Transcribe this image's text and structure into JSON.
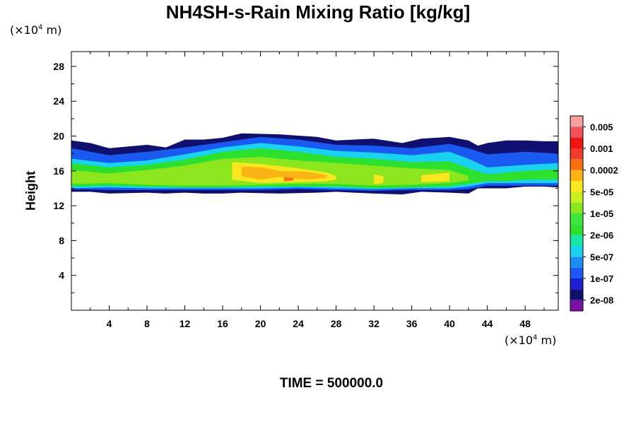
{
  "chart_data": {
    "type": "heatmap",
    "title": "NH4SH-s-Rain Mixing Ratio [kg/kg]",
    "ylabel": "Height",
    "xlabel": "",
    "x_unit": {
      "prefix": "(×10",
      "exp": "4",
      "suffix": " m)"
    },
    "y_unit": {
      "prefix": "(×10",
      "exp": "4",
      "suffix": " m)"
    },
    "xlim": [
      0,
      51.5
    ],
    "ylim": [
      0,
      29.7
    ],
    "x_ticks": [
      4,
      8,
      12,
      16,
      20,
      24,
      28,
      32,
      36,
      40,
      44,
      48
    ],
    "y_ticks": [
      4,
      8,
      12,
      16,
      20,
      24,
      28
    ],
    "time_label": "TIME = 500000.0",
    "colorbar": {
      "colors": [
        "#7b0fa8",
        "#101070",
        "#1e1ed2",
        "#1a5af0",
        "#1c8cf5",
        "#18d2f0",
        "#18e6a6",
        "#2ee02e",
        "#3ce63c",
        "#8ce61e",
        "#c8f01e",
        "#fae61e",
        "#fab414",
        "#fa6e14",
        "#f03c28",
        "#f01414",
        "#f0505a",
        "#f8a0a0"
      ],
      "labels": [
        "2e-08",
        "1e-07",
        "5e-07",
        "2e-06",
        "1e-05",
        "5e-05",
        "0.0002",
        "0.001",
        "0.005"
      ]
    },
    "field_regions": [
      {
        "level": 1,
        "profile": [
          [
            0,
            13.6,
            19.5
          ],
          [
            2,
            13.6,
            19.2
          ],
          [
            4,
            13.4,
            18.6
          ],
          [
            8,
            13.5,
            19.0
          ],
          [
            10,
            13.4,
            18.7
          ],
          [
            12,
            13.5,
            19.6
          ],
          [
            14,
            13.4,
            19.6
          ],
          [
            16,
            13.4,
            19.8
          ],
          [
            18,
            13.5,
            20.3
          ],
          [
            22,
            13.4,
            20.2
          ],
          [
            26,
            13.5,
            19.9
          ],
          [
            28,
            13.6,
            19.5
          ],
          [
            32,
            13.4,
            19.7
          ],
          [
            35,
            13.3,
            19.2
          ],
          [
            37,
            13.6,
            19.7
          ],
          [
            40,
            13.5,
            19.9
          ],
          [
            42,
            13.4,
            19.5
          ],
          [
            43,
            14.0,
            18.9
          ],
          [
            44,
            14.0,
            19.2
          ],
          [
            46,
            14.0,
            19.5
          ],
          [
            48,
            14.2,
            19.5
          ],
          [
            50,
            14.2,
            19.4
          ],
          [
            51.5,
            14.1,
            19.4
          ]
        ]
      },
      {
        "level": 3,
        "profile": [
          [
            0,
            13.9,
            18.6
          ],
          [
            4,
            13.8,
            17.8
          ],
          [
            8,
            13.8,
            18.2
          ],
          [
            12,
            13.8,
            18.7
          ],
          [
            16,
            13.8,
            19.3
          ],
          [
            20,
            13.8,
            19.9
          ],
          [
            24,
            13.9,
            19.6
          ],
          [
            28,
            13.8,
            19.0
          ],
          [
            32,
            13.7,
            18.9
          ],
          [
            36,
            13.8,
            18.6
          ],
          [
            40,
            13.8,
            19.1
          ],
          [
            42,
            13.9,
            18.6
          ],
          [
            44,
            14.3,
            17.9
          ],
          [
            48,
            14.3,
            18.2
          ],
          [
            51.5,
            14.3,
            18.0
          ]
        ]
      },
      {
        "level": 5,
        "profile": [
          [
            0,
            14.0,
            17.4
          ],
          [
            4,
            14.1,
            16.9
          ],
          [
            8,
            14.0,
            17.2
          ],
          [
            12,
            14.0,
            17.9
          ],
          [
            16,
            14.0,
            18.7
          ],
          [
            20,
            14.0,
            19.2
          ],
          [
            24,
            14.1,
            18.8
          ],
          [
            28,
            14.0,
            18.3
          ],
          [
            32,
            13.9,
            18.1
          ],
          [
            36,
            14.0,
            17.8
          ],
          [
            40,
            14.0,
            18.2
          ],
          [
            42,
            14.2,
            17.4
          ],
          [
            44,
            14.6,
            16.4
          ],
          [
            48,
            14.6,
            16.7
          ],
          [
            51.5,
            14.6,
            16.9
          ]
        ]
      },
      {
        "level": 7,
        "profile": [
          [
            0,
            14.2,
            16.9
          ],
          [
            4,
            14.3,
            16.4
          ],
          [
            8,
            14.2,
            16.7
          ],
          [
            12,
            14.1,
            17.3
          ],
          [
            16,
            14.1,
            18.2
          ],
          [
            20,
            14.2,
            18.6
          ],
          [
            24,
            14.2,
            18.2
          ],
          [
            28,
            14.2,
            17.6
          ],
          [
            32,
            14.0,
            17.4
          ],
          [
            36,
            14.1,
            17.0
          ],
          [
            40,
            14.2,
            17.1
          ],
          [
            42,
            14.5,
            16.3
          ],
          [
            44,
            14.8,
            15.6
          ],
          [
            46,
            14.8,
            15.8
          ],
          [
            48,
            15.0,
            16.0
          ],
          [
            51.5,
            15.0,
            16.2
          ]
        ]
      },
      {
        "level": 9,
        "profile": [
          [
            0,
            14.5,
            16.1
          ],
          [
            4,
            14.6,
            15.7
          ],
          [
            8,
            14.4,
            16.1
          ],
          [
            12,
            14.3,
            16.6
          ],
          [
            16,
            14.3,
            17.4
          ],
          [
            20,
            14.4,
            17.6
          ],
          [
            24,
            14.5,
            17.2
          ],
          [
            28,
            14.5,
            16.9
          ],
          [
            32,
            14.3,
            16.6
          ],
          [
            36,
            14.4,
            16.3
          ],
          [
            40,
            14.6,
            16.1
          ],
          [
            42,
            14.9,
            15.4
          ]
        ]
      },
      {
        "level": 11,
        "profile": [
          [
            17,
            15.0,
            17.0
          ],
          [
            20,
            14.6,
            16.8
          ],
          [
            24,
            14.7,
            16.3
          ],
          [
            27,
            14.8,
            15.8
          ],
          [
            28,
            15.0,
            15.4
          ]
        ]
      },
      {
        "level": 11,
        "profile": [
          [
            32,
            14.5,
            15.6
          ],
          [
            33,
            14.6,
            15.4
          ]
        ]
      },
      {
        "level": 11,
        "profile": [
          [
            37,
            14.7,
            15.5
          ],
          [
            40,
            14.8,
            15.8
          ]
        ]
      },
      {
        "level": 12,
        "profile": [
          [
            18,
            15.4,
            16.5
          ],
          [
            20,
            15.0,
            16.4
          ],
          [
            22,
            15.3,
            16.0
          ],
          [
            25,
            15.0,
            15.9
          ],
          [
            27,
            15.2,
            15.5
          ]
        ]
      },
      {
        "level": 13,
        "profile": [
          [
            22.5,
            14.8,
            15.3
          ],
          [
            23.5,
            14.9,
            15.2
          ]
        ]
      }
    ]
  }
}
